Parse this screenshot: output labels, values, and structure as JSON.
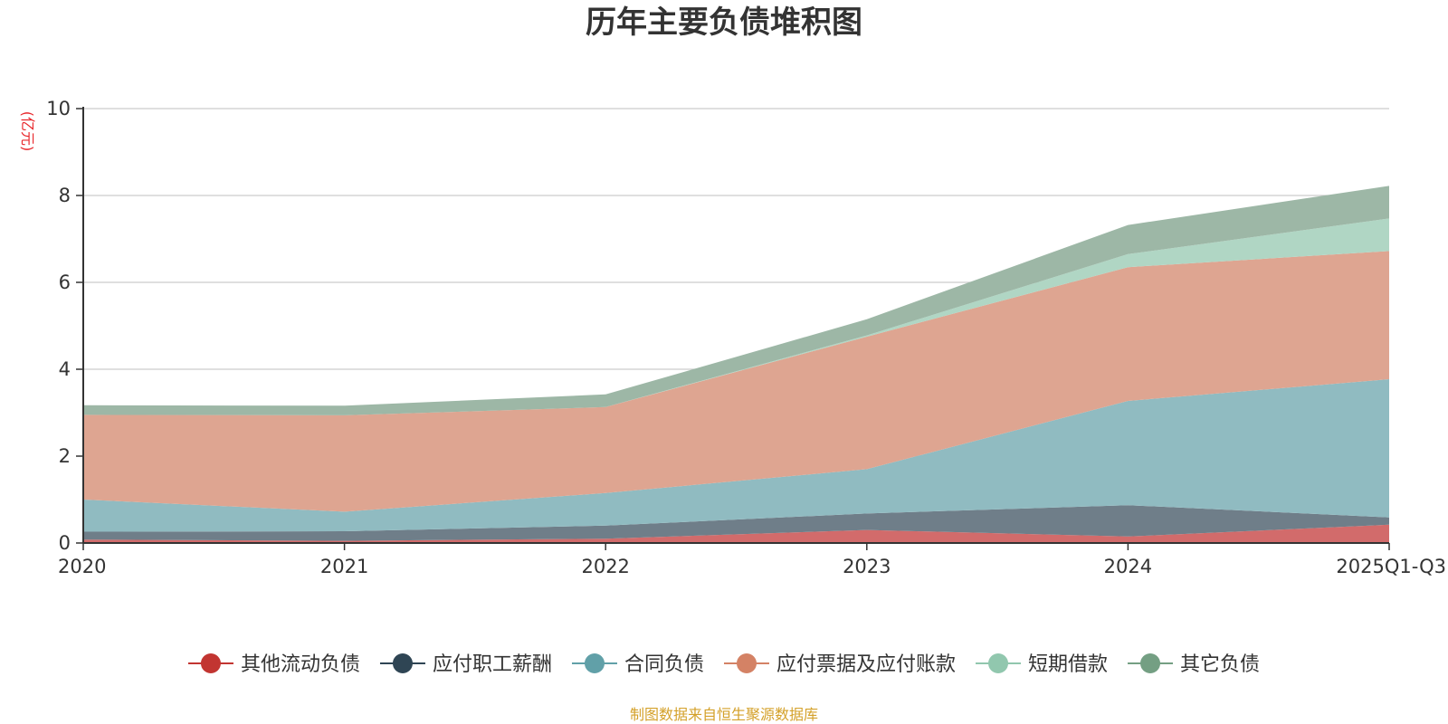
{
  "chart_data": {
    "type": "area",
    "stacked": true,
    "title": "历年主要负债堆积图",
    "ylabel": "(亿元)",
    "xlabel": "",
    "categories": [
      "2020",
      "2021",
      "2022",
      "2023",
      "2024",
      "2025Q1-Q3"
    ],
    "ylim": [
      0,
      10
    ],
    "yticks": [
      0,
      2,
      4,
      6,
      8,
      10
    ],
    "grid": true,
    "legend_position": "bottom",
    "series": [
      {
        "name": "其他流动负债",
        "color": "#c23531",
        "fill": "#d26b6b",
        "values": [
          0.08,
          0.05,
          0.1,
          0.3,
          0.15,
          0.42
        ]
      },
      {
        "name": "应付职工薪酬",
        "color": "#2f4554",
        "fill": "#6f7e89",
        "values": [
          0.18,
          0.22,
          0.3,
          0.38,
          0.72,
          0.17
        ]
      },
      {
        "name": "合同负债",
        "color": "#61a0a8",
        "fill": "#90bbc1",
        "values": [
          0.74,
          0.45,
          0.75,
          1.02,
          2.4,
          3.18
        ]
      },
      {
        "name": "应付票据及应付账款",
        "color": "#d48265",
        "fill": "#dea591",
        "values": [
          1.95,
          2.22,
          1.98,
          3.05,
          3.08,
          2.95
        ]
      },
      {
        "name": "短期借款",
        "color": "#91c7ae",
        "fill": "#b0d6c4",
        "values": [
          0.0,
          0.0,
          0.0,
          0.03,
          0.3,
          0.75
        ]
      },
      {
        "name": "其它负债",
        "color": "#749f83",
        "fill": "#9db7a6",
        "values": [
          0.22,
          0.22,
          0.29,
          0.37,
          0.67,
          0.75
        ]
      }
    ]
  },
  "footer": {
    "source": "制图数据来自恒生聚源数据库"
  }
}
